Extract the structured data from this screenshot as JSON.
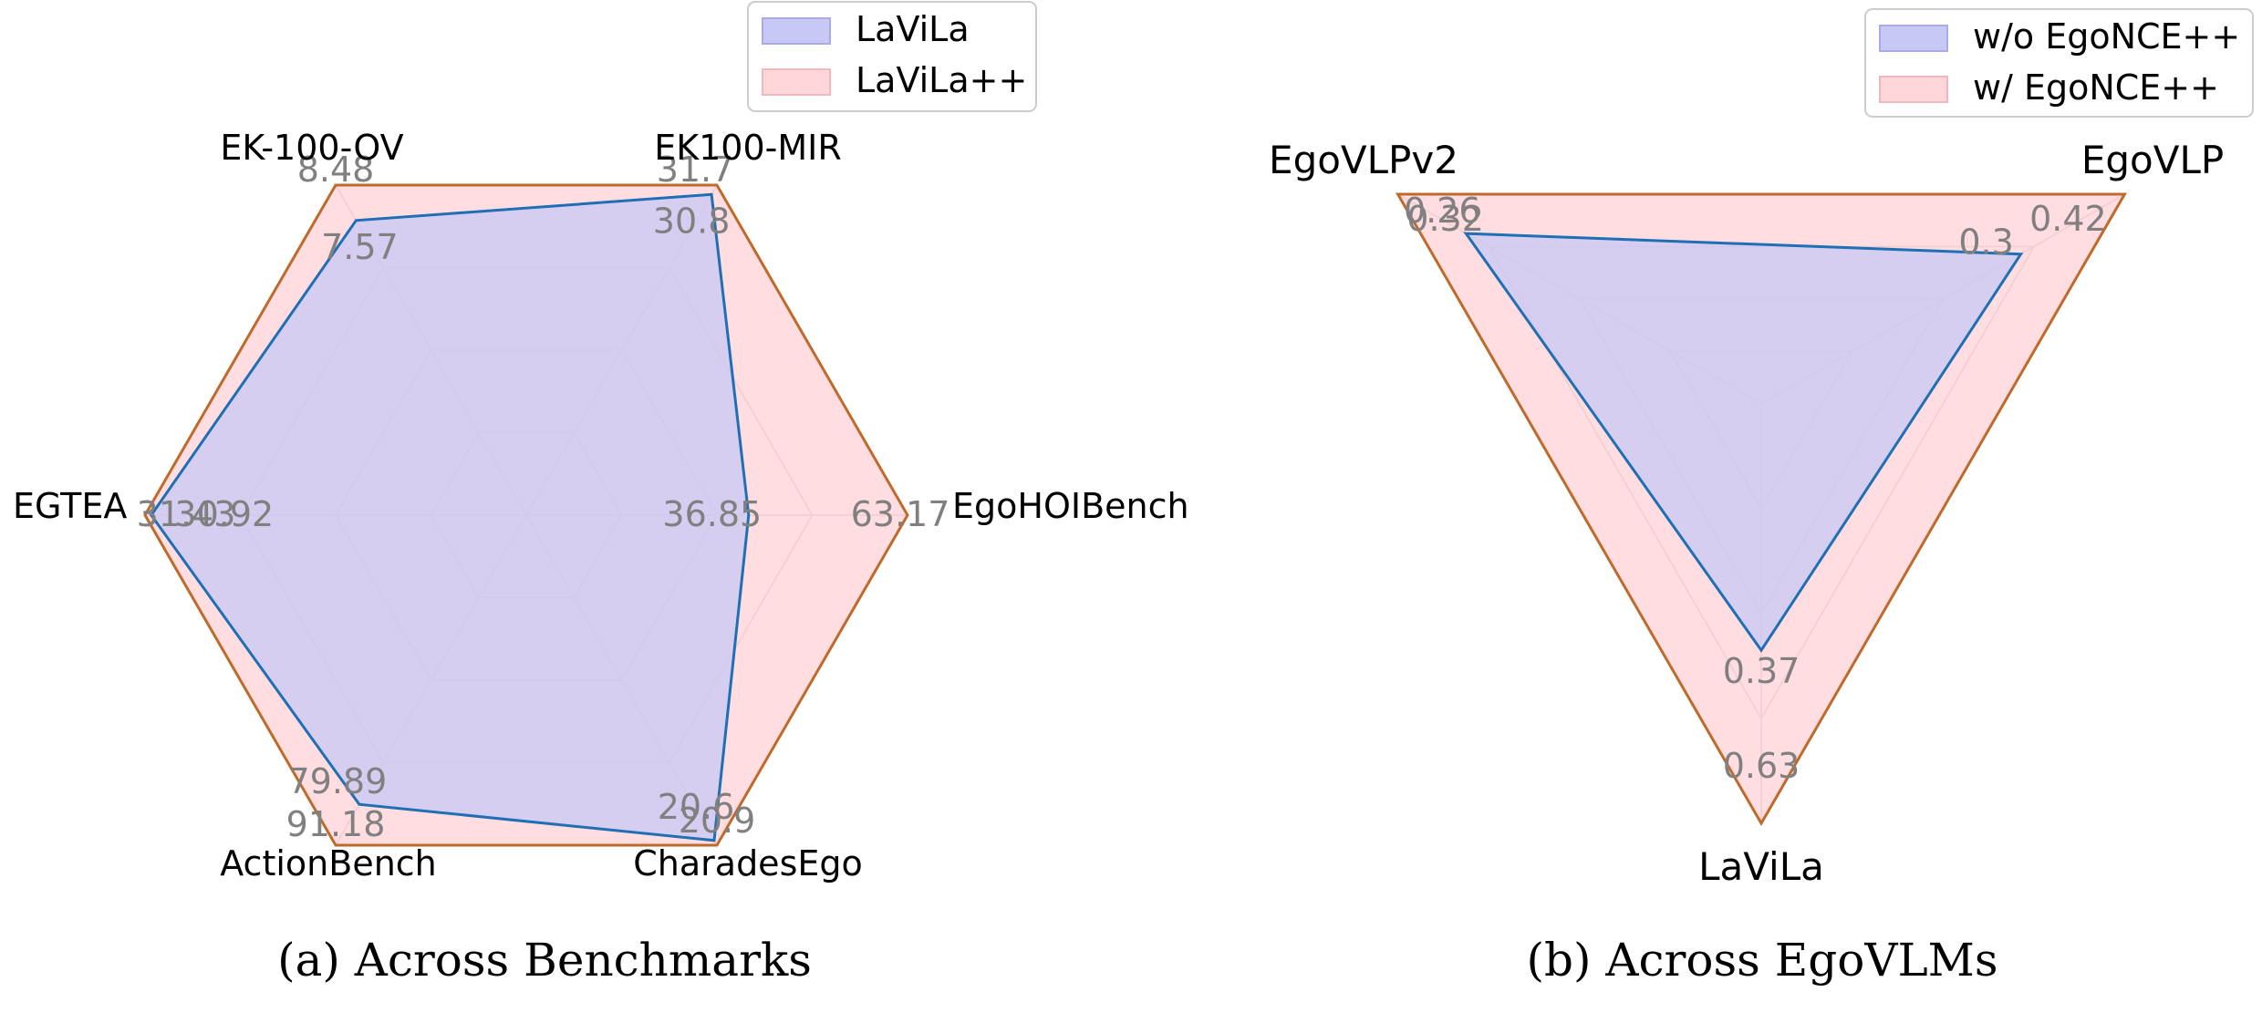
{
  "chart_data": [
    {
      "type": "radar",
      "caption": "(a) Across Benchmarks",
      "axes": [
        "EK100-MIR",
        "EK-100-OV",
        "EGTEA",
        "ActionBench",
        "CharadesEgo",
        "EgoHOIBench"
      ],
      "series": [
        {
          "name": "LaViLa",
          "values": [
            30.8,
            7.57,
            30.92,
            79.89,
            20.6,
            36.85
          ],
          "fill": "#c8c8f5",
          "line": "#1f6fb5"
        },
        {
          "name": "LaViLa++",
          "values": [
            31.7,
            8.48,
            31.43,
            91.18,
            20.9,
            63.17
          ],
          "fill": "#ffd7da",
          "line": "#bf6a2a"
        }
      ],
      "legend_position": "top-right",
      "grid": true
    },
    {
      "type": "radar",
      "caption": "(b) Across EgoVLMs",
      "axes": [
        "EgoVLP",
        "EgoVLPv2",
        "LaViLa"
      ],
      "series": [
        {
          "name": "w/o EgoNCE++",
          "values": [
            0.3,
            0.26,
            0.37
          ],
          "fill": "#c8c8f5",
          "line": "#1f6fb5"
        },
        {
          "name": "w/ EgoNCE++",
          "values": [
            0.42,
            0.32,
            0.63
          ],
          "fill": "#ffd7da",
          "line": "#bf6a2a"
        }
      ],
      "legend_position": "top-right",
      "grid": true
    }
  ]
}
